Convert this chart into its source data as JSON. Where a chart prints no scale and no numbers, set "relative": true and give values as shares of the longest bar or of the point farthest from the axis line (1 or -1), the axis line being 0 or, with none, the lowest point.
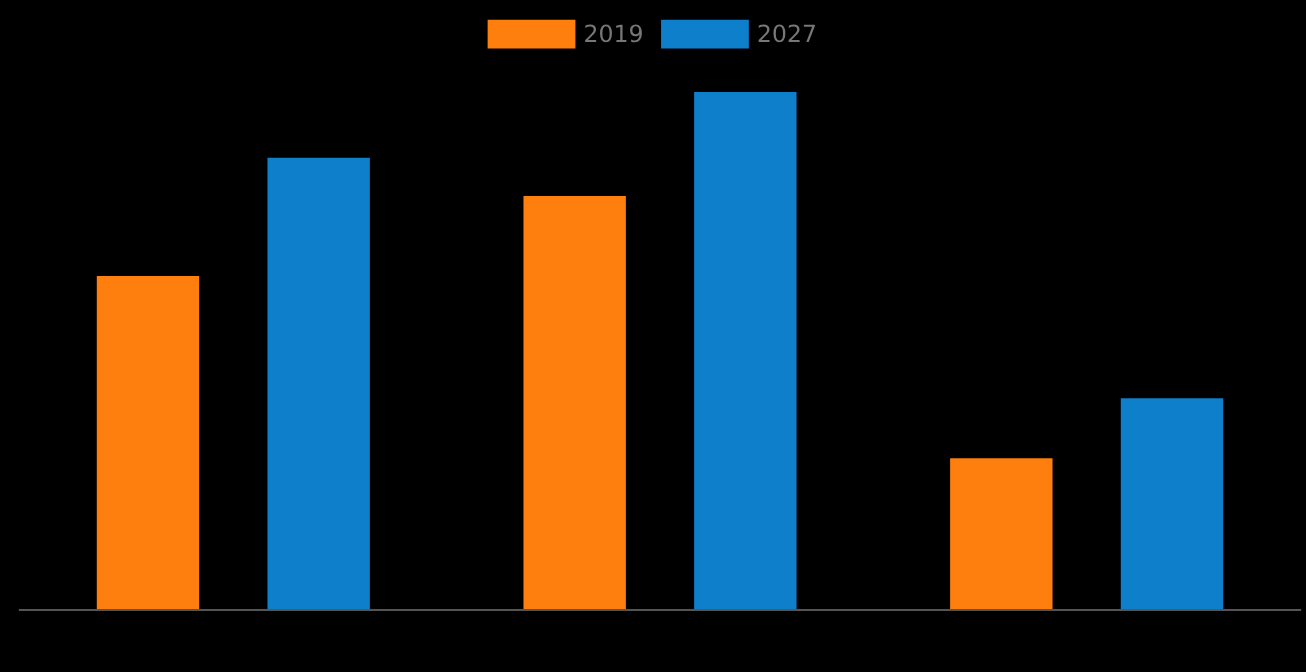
{
  "chart_data": {
    "type": "bar",
    "relative": true,
    "categories": [
      null,
      null,
      null
    ],
    "series": [
      {
        "name": "2019",
        "color": "#ff7f0e",
        "values": [
          0.645,
          0.799,
          0.293
        ]
      },
      {
        "name": "2027",
        "color": "#0e7fcb",
        "values": [
          0.873,
          1,
          0.409
        ]
      }
    ],
    "legend": "top",
    "grid": false
  }
}
